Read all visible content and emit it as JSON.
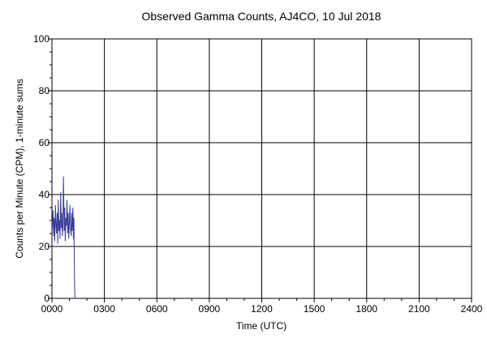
{
  "chart_data": {
    "type": "line",
    "title": "Observed Gamma Counts, AJ4CO, 10 Jul 2018",
    "xlabel": "Time (UTC)",
    "ylabel": "Counts per Minute (CPM), 1-minute sums",
    "xlim": [
      0,
      24
    ],
    "ylim": [
      0,
      100
    ],
    "x_ticks": [
      0,
      3,
      6,
      9,
      12,
      15,
      18,
      21,
      24
    ],
    "x_tick_labels": [
      "0000",
      "0300",
      "0600",
      "0900",
      "1200",
      "1500",
      "1800",
      "2100",
      "2400"
    ],
    "y_ticks": [
      0,
      20,
      40,
      60,
      80,
      100
    ],
    "y_tick_labels": [
      "0",
      "20",
      "40",
      "60",
      "80",
      "100"
    ],
    "grid": true,
    "series": [
      {
        "color": "#3a3a9a",
        "x_unit": "hours UTC",
        "x": [
          0.0,
          0.03,
          0.06,
          0.1,
          0.13,
          0.16,
          0.2,
          0.23,
          0.26,
          0.3,
          0.33,
          0.36,
          0.4,
          0.43,
          0.46,
          0.5,
          0.53,
          0.56,
          0.6,
          0.63,
          0.66,
          0.7,
          0.73,
          0.76,
          0.8,
          0.83,
          0.86,
          0.9,
          0.93,
          0.96,
          1.0,
          1.03,
          1.06,
          1.1,
          1.13,
          1.16,
          1.2,
          1.23,
          1.26,
          1.28,
          1.3,
          1.32
        ],
        "y": [
          30,
          27,
          34,
          24,
          31,
          22,
          36,
          28,
          25,
          33,
          21,
          38,
          26,
          30,
          23,
          41,
          27,
          33,
          24,
          29,
          47,
          26,
          35,
          22,
          31,
          28,
          38,
          25,
          33,
          23,
          30,
          36,
          27,
          24,
          33,
          26,
          35,
          23,
          31,
          12,
          3,
          0
        ]
      }
    ]
  }
}
